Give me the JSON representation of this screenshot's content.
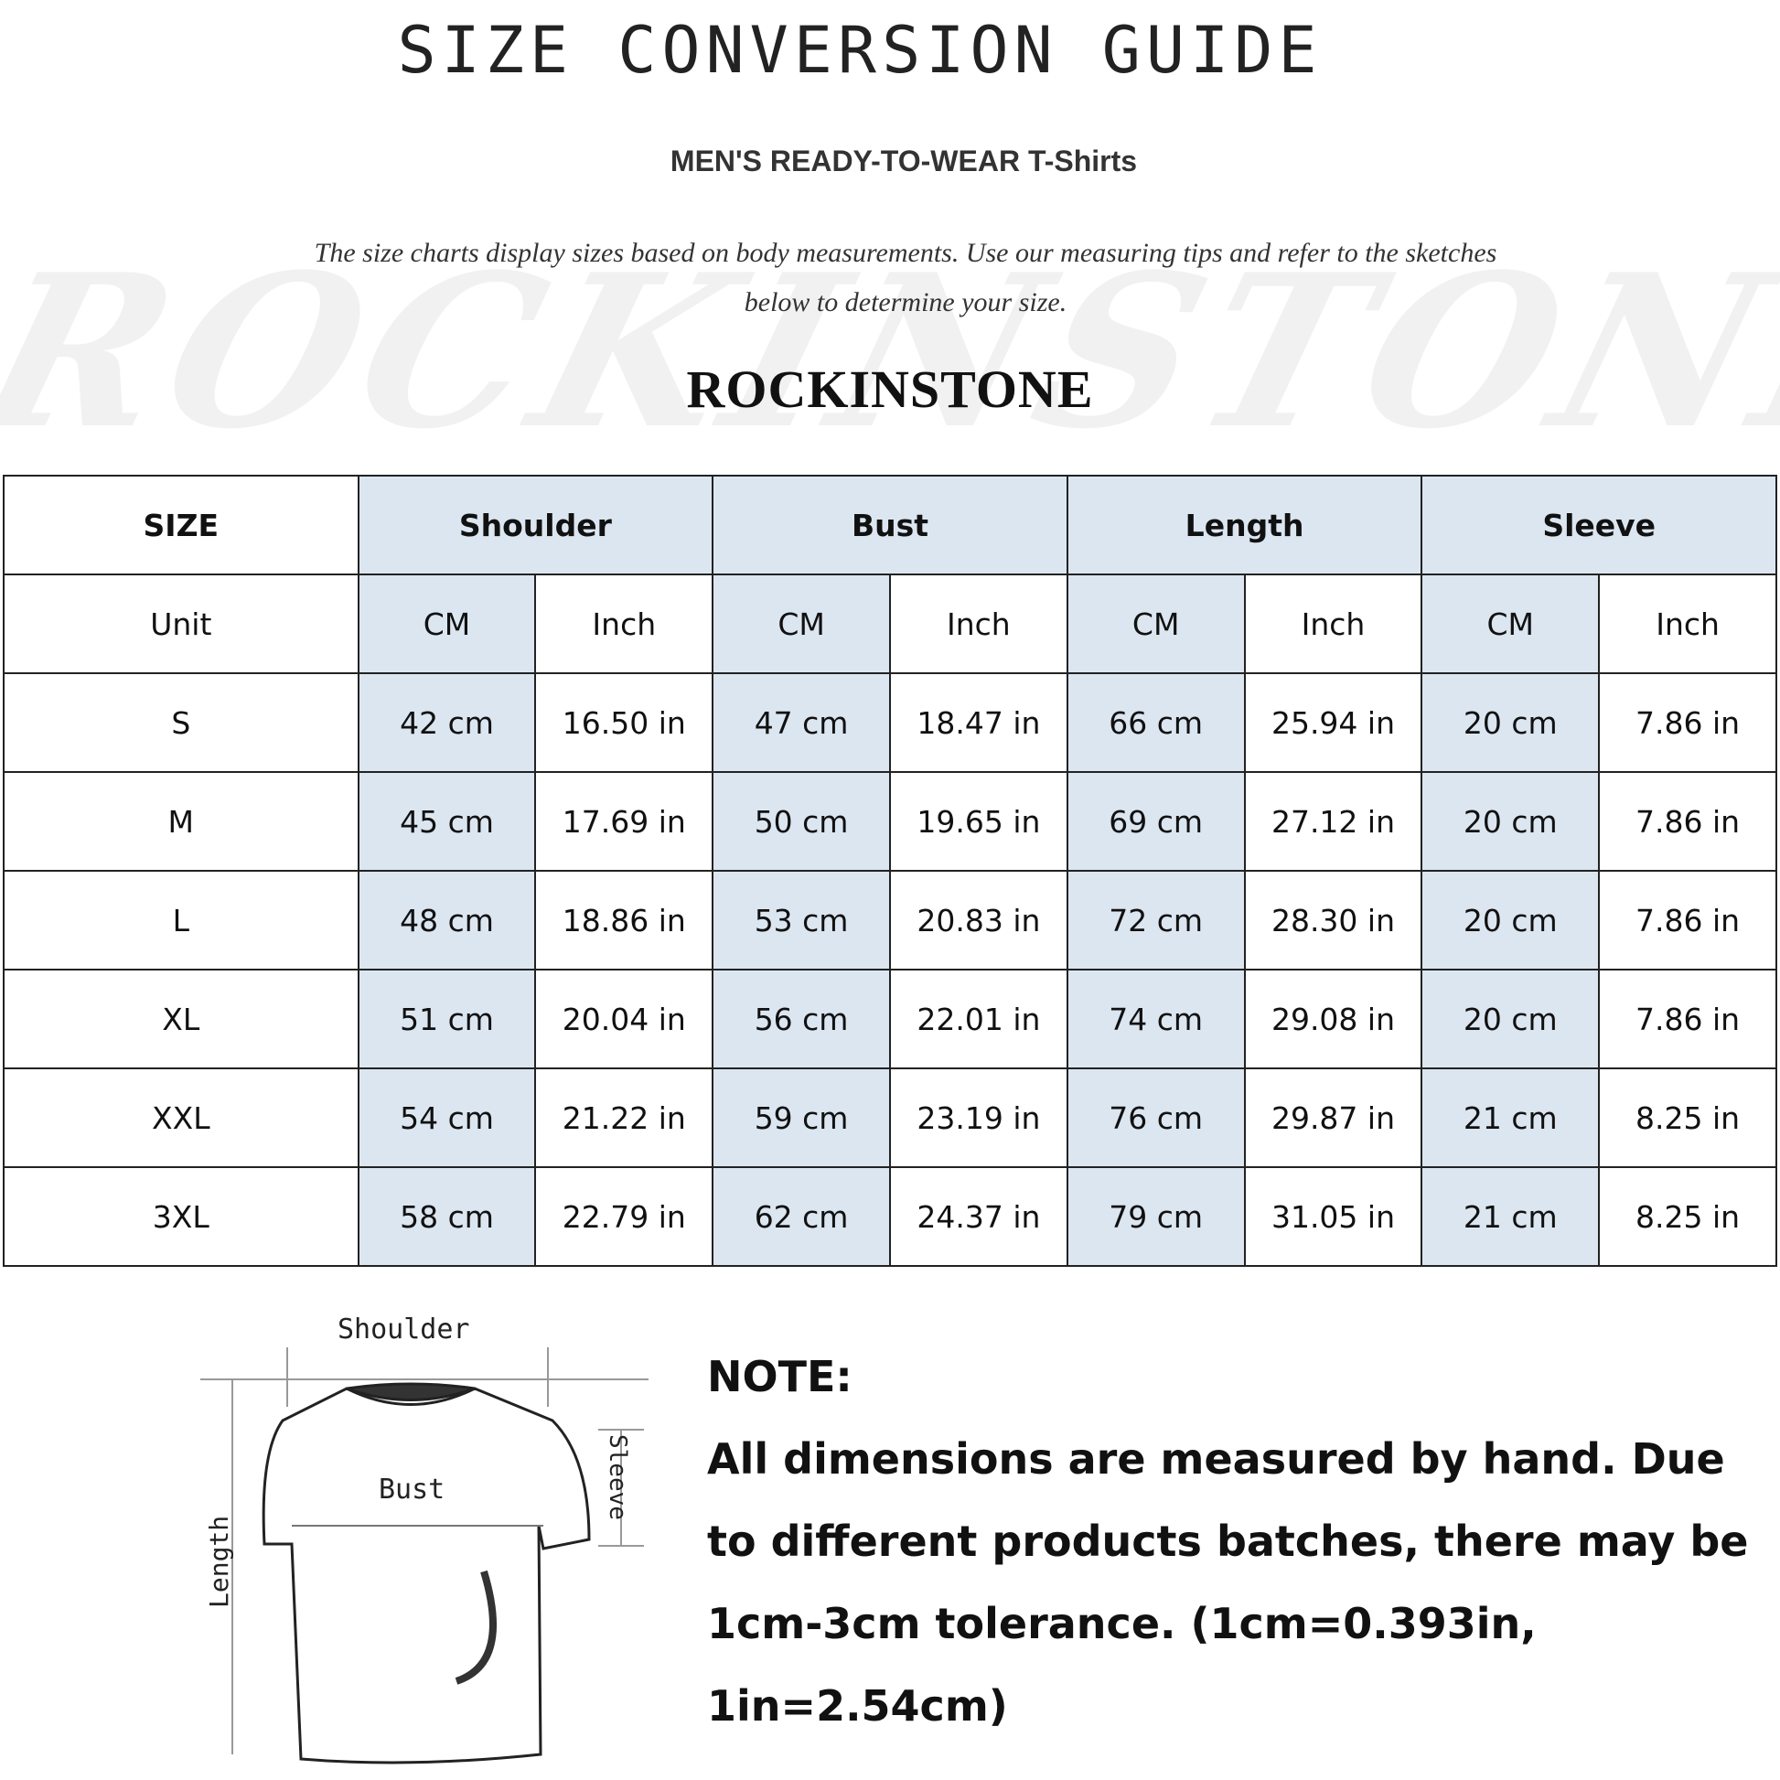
{
  "title": "SIZE CONVERSION GUIDE",
  "subtitle": "MEN'S READY-TO-WEAR T-Shirts",
  "intro_line1": "The size charts display sizes based on body measurements. Use our measuring tips and refer to the sketches",
  "intro_line2": "below to determine your size.",
  "watermark": "ROCKINSTONE",
  "brand": "ROCKINSTONE",
  "colors": {
    "header_fill": "#dce6f1",
    "border": "#222222"
  },
  "table": {
    "size_label": "SIZE",
    "groups": [
      "Shoulder",
      "Bust",
      "Length",
      "Sleeve"
    ],
    "unit_label": "Unit",
    "units": [
      "CM",
      "Inch",
      "CM",
      "Inch",
      "CM",
      "Inch",
      "CM",
      "Inch"
    ],
    "rows": [
      {
        "size": "S",
        "cells": [
          "42 cm",
          "16.50 in",
          "47 cm",
          "18.47 in",
          "66 cm",
          "25.94 in",
          "20 cm",
          "7.86 in"
        ]
      },
      {
        "size": "M",
        "cells": [
          "45 cm",
          "17.69 in",
          "50 cm",
          "19.65 in",
          "69 cm",
          "27.12 in",
          "20 cm",
          "7.86 in"
        ]
      },
      {
        "size": "L",
        "cells": [
          "48 cm",
          "18.86 in",
          "53 cm",
          "20.83 in",
          "72 cm",
          "28.30 in",
          "20 cm",
          "7.86 in"
        ]
      },
      {
        "size": "XL",
        "cells": [
          "51 cm",
          "20.04 in",
          "56 cm",
          "22.01 in",
          "74 cm",
          "29.08 in",
          "20 cm",
          "7.86 in"
        ]
      },
      {
        "size": "XXL",
        "cells": [
          "54 cm",
          "21.22 in",
          "59 cm",
          "23.19 in",
          "76 cm",
          "29.87 in",
          "21 cm",
          "8.25 in"
        ]
      },
      {
        "size": "3XL",
        "cells": [
          "58 cm",
          "22.79 in",
          "62 cm",
          "24.37 in",
          "79 cm",
          "31.05 in",
          "21 cm",
          "8.25 in"
        ]
      }
    ]
  },
  "sketch": {
    "shoulder": "Shoulder",
    "bust": "Bust",
    "length": "Length",
    "sleeve": "Sleeve"
  },
  "note": {
    "heading": "NOTE:",
    "text": "All dimensions are measured by hand. Due to different products batches, there may be 1cm-3cm tolerance. (1cm=0.393in, 1in=2.54cm)"
  }
}
